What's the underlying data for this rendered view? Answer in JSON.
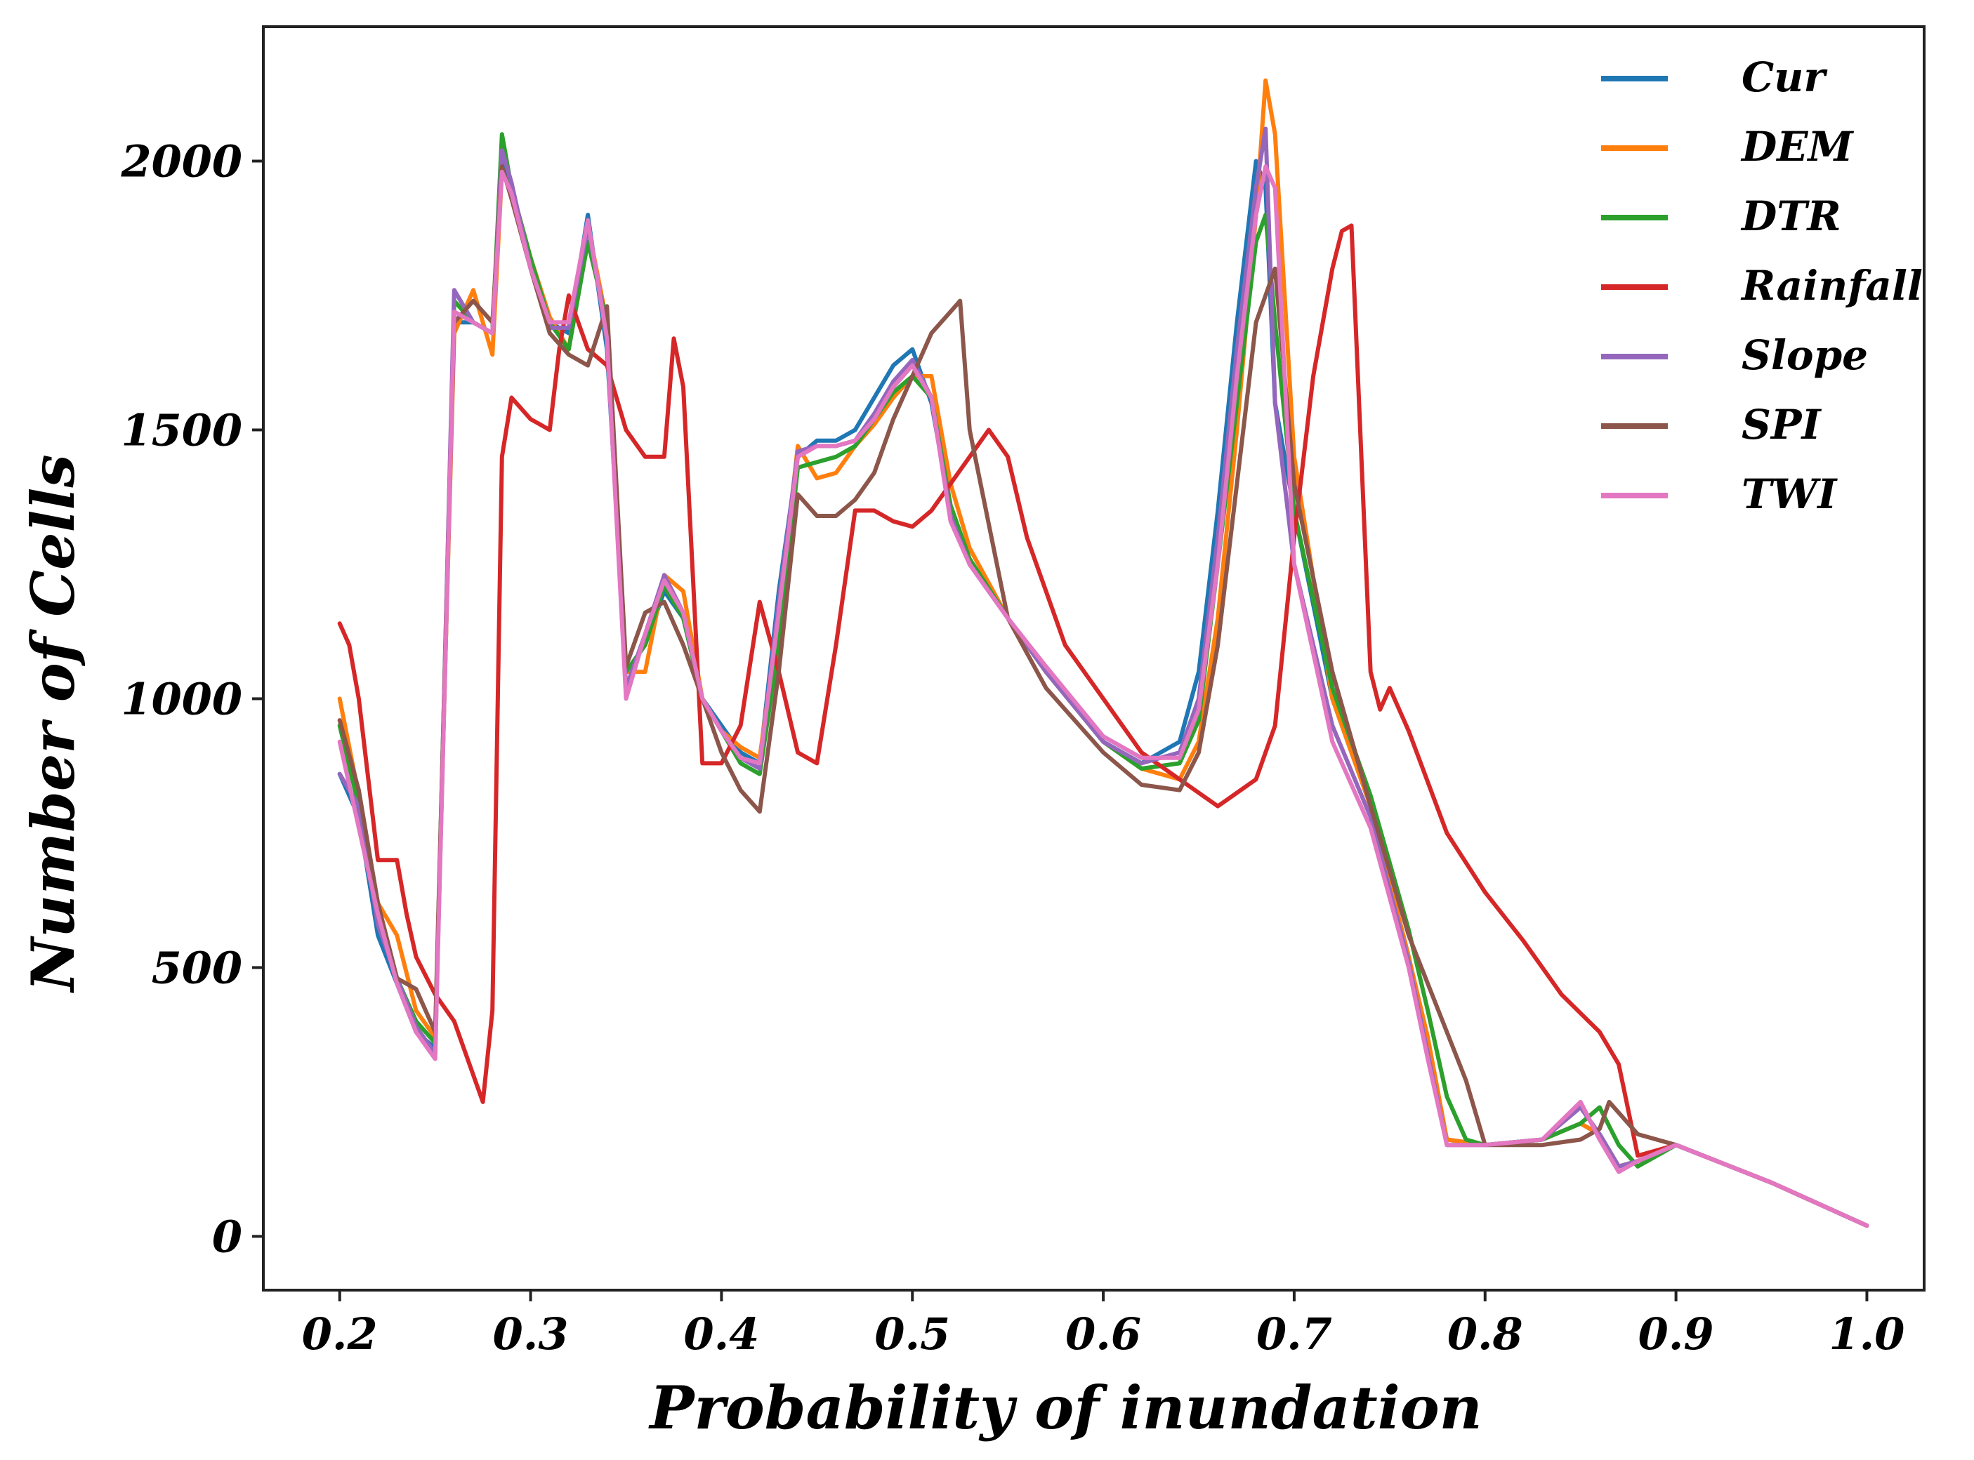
{
  "chart_data": {
    "type": "line",
    "title": "",
    "xlabel": "Probability of inundation",
    "ylabel": "Number of Cells",
    "xlim": [
      0.16,
      1.03
    ],
    "ylim": [
      -100,
      2250
    ],
    "xticks": [
      0.2,
      0.3,
      0.4,
      0.5,
      0.6,
      0.7,
      0.8,
      0.9,
      1.0
    ],
    "xtick_labels": [
      "0.2",
      "0.3",
      "0.4",
      "0.5",
      "0.6",
      "0.7",
      "0.8",
      "0.9",
      "1.0"
    ],
    "yticks": [
      0,
      500,
      1000,
      1500,
      2000
    ],
    "ytick_labels": [
      "0",
      "500",
      "1000",
      "1500",
      "2000"
    ],
    "grid": false,
    "legend_position": "top-right",
    "series": [
      {
        "name": "Cur",
        "color": "#1f77b4",
        "x": [
          0.2,
          0.21,
          0.22,
          0.23,
          0.24,
          0.25,
          0.26,
          0.27,
          0.28,
          0.285,
          0.29,
          0.3,
          0.31,
          0.32,
          0.33,
          0.34,
          0.35,
          0.36,
          0.37,
          0.38,
          0.39,
          0.4,
          0.41,
          0.42,
          0.43,
          0.44,
          0.45,
          0.46,
          0.47,
          0.48,
          0.49,
          0.5,
          0.51,
          0.52,
          0.53,
          0.55,
          0.57,
          0.6,
          0.62,
          0.64,
          0.65,
          0.66,
          0.67,
          0.68,
          0.685,
          0.69,
          0.7,
          0.72,
          0.74,
          0.76,
          0.77,
          0.78,
          0.8,
          0.83,
          0.85,
          0.86,
          0.87,
          0.88,
          0.9,
          0.95,
          1.0
        ],
        "y": [
          860,
          780,
          560,
          470,
          380,
          350,
          1700,
          1700,
          1680,
          2000,
          1950,
          1800,
          1700,
          1680,
          1900,
          1650,
          1050,
          1100,
          1200,
          1150,
          1000,
          950,
          900,
          880,
          1200,
          1450,
          1480,
          1480,
          1500,
          1560,
          1620,
          1650,
          1550,
          1350,
          1250,
          1150,
          1050,
          920,
          880,
          920,
          1050,
          1350,
          1700,
          2000,
          1950,
          1550,
          1350,
          1000,
          800,
          520,
          350,
          180,
          170,
          180,
          210,
          190,
          130,
          140,
          170,
          100,
          20
        ]
      },
      {
        "name": "DEM",
        "color": "#ff7f0e",
        "x": [
          0.2,
          0.21,
          0.22,
          0.23,
          0.24,
          0.25,
          0.26,
          0.27,
          0.28,
          0.285,
          0.29,
          0.3,
          0.31,
          0.32,
          0.33,
          0.34,
          0.35,
          0.36,
          0.37,
          0.38,
          0.39,
          0.4,
          0.41,
          0.42,
          0.43,
          0.44,
          0.45,
          0.46,
          0.47,
          0.48,
          0.49,
          0.5,
          0.51,
          0.52,
          0.53,
          0.55,
          0.57,
          0.6,
          0.62,
          0.64,
          0.65,
          0.66,
          0.67,
          0.68,
          0.685,
          0.69,
          0.7,
          0.72,
          0.74,
          0.76,
          0.77,
          0.78,
          0.8,
          0.83,
          0.85,
          0.86,
          0.87,
          0.88,
          0.9,
          0.95,
          1.0
        ],
        "y": [
          1000,
          820,
          620,
          560,
          420,
          370,
          1680,
          1760,
          1640,
          1980,
          1950,
          1820,
          1710,
          1650,
          1880,
          1700,
          1050,
          1050,
          1230,
          1200,
          1000,
          940,
          910,
          890,
          1150,
          1470,
          1410,
          1420,
          1470,
          1510,
          1560,
          1600,
          1600,
          1400,
          1280,
          1150,
          1050,
          920,
          870,
          850,
          920,
          1150,
          1500,
          1900,
          2150,
          2050,
          1450,
          1000,
          800,
          520,
          370,
          180,
          170,
          180,
          210,
          190,
          130,
          140,
          170,
          100,
          20
        ]
      },
      {
        "name": "DTR",
        "color": "#2ca02c",
        "x": [
          0.2,
          0.21,
          0.22,
          0.23,
          0.24,
          0.25,
          0.26,
          0.27,
          0.28,
          0.285,
          0.29,
          0.3,
          0.31,
          0.32,
          0.33,
          0.34,
          0.35,
          0.36,
          0.37,
          0.38,
          0.39,
          0.4,
          0.41,
          0.42,
          0.43,
          0.44,
          0.45,
          0.46,
          0.47,
          0.48,
          0.49,
          0.5,
          0.51,
          0.52,
          0.53,
          0.55,
          0.57,
          0.6,
          0.62,
          0.64,
          0.65,
          0.66,
          0.67,
          0.68,
          0.685,
          0.69,
          0.7,
          0.72,
          0.74,
          0.76,
          0.77,
          0.78,
          0.79,
          0.8,
          0.83,
          0.85,
          0.86,
          0.87,
          0.88,
          0.9,
          0.95,
          1.0
        ],
        "y": [
          950,
          800,
          600,
          480,
          400,
          360,
          1740,
          1700,
          1680,
          2050,
          1950,
          1820,
          1700,
          1650,
          1850,
          1700,
          1050,
          1100,
          1210,
          1150,
          1000,
          940,
          880,
          860,
          1100,
          1430,
          1440,
          1450,
          1470,
          1520,
          1570,
          1600,
          1560,
          1360,
          1260,
          1150,
          1050,
          920,
          870,
          880,
          960,
          1250,
          1550,
          1850,
          1900,
          1700,
          1350,
          1020,
          820,
          570,
          420,
          260,
          180,
          170,
          180,
          210,
          240,
          170,
          130,
          170,
          100,
          20
        ]
      },
      {
        "name": "Rainfall",
        "color": "#d62728",
        "x": [
          0.2,
          0.205,
          0.21,
          0.22,
          0.23,
          0.235,
          0.24,
          0.25,
          0.26,
          0.27,
          0.275,
          0.28,
          0.285,
          0.29,
          0.3,
          0.31,
          0.315,
          0.32,
          0.33,
          0.34,
          0.35,
          0.36,
          0.37,
          0.375,
          0.38,
          0.39,
          0.4,
          0.41,
          0.42,
          0.43,
          0.44,
          0.45,
          0.46,
          0.47,
          0.48,
          0.49,
          0.5,
          0.51,
          0.52,
          0.53,
          0.54,
          0.55,
          0.56,
          0.58,
          0.6,
          0.62,
          0.64,
          0.66,
          0.68,
          0.69,
          0.7,
          0.71,
          0.72,
          0.725,
          0.73,
          0.74,
          0.745,
          0.75,
          0.76,
          0.78,
          0.8,
          0.82,
          0.84,
          0.86,
          0.87,
          0.88,
          0.9,
          0.95,
          1.0
        ],
        "y": [
          1140,
          1100,
          1000,
          700,
          700,
          600,
          520,
          450,
          400,
          300,
          250,
          420,
          1450,
          1560,
          1520,
          1500,
          1650,
          1750,
          1650,
          1620,
          1500,
          1450,
          1450,
          1670,
          1580,
          880,
          880,
          950,
          1180,
          1050,
          900,
          880,
          1100,
          1350,
          1350,
          1330,
          1320,
          1350,
          1400,
          1450,
          1500,
          1450,
          1300,
          1100,
          1000,
          900,
          850,
          800,
          850,
          950,
          1300,
          1600,
          1800,
          1870,
          1880,
          1050,
          980,
          1020,
          940,
          750,
          640,
          550,
          450,
          380,
          320,
          150,
          170,
          100,
          20
        ]
      },
      {
        "name": "Slope",
        "color": "#9467bd",
        "x": [
          0.2,
          0.21,
          0.22,
          0.23,
          0.24,
          0.25,
          0.26,
          0.27,
          0.28,
          0.285,
          0.29,
          0.3,
          0.31,
          0.32,
          0.33,
          0.34,
          0.35,
          0.36,
          0.37,
          0.38,
          0.39,
          0.4,
          0.41,
          0.42,
          0.43,
          0.44,
          0.45,
          0.46,
          0.47,
          0.48,
          0.49,
          0.5,
          0.51,
          0.52,
          0.53,
          0.55,
          0.57,
          0.6,
          0.62,
          0.64,
          0.65,
          0.66,
          0.67,
          0.68,
          0.685,
          0.69,
          0.7,
          0.72,
          0.74,
          0.76,
          0.77,
          0.78,
          0.8,
          0.83,
          0.85,
          0.86,
          0.87,
          0.88,
          0.9,
          0.95,
          1.0
        ],
        "y": [
          860,
          800,
          580,
          480,
          390,
          340,
          1760,
          1700,
          1680,
          2020,
          1960,
          1800,
          1690,
          1690,
          1880,
          1680,
          1020,
          1120,
          1230,
          1160,
          1000,
          940,
          890,
          870,
          1180,
          1460,
          1470,
          1470,
          1480,
          1530,
          1590,
          1630,
          1560,
          1340,
          1250,
          1150,
          1050,
          920,
          880,
          900,
          1000,
          1300,
          1650,
          1950,
          2060,
          1550,
          1250,
          950,
          780,
          510,
          340,
          170,
          170,
          180,
          240,
          190,
          130,
          140,
          170,
          100,
          20
        ]
      },
      {
        "name": "SPI",
        "color": "#8c564b",
        "x": [
          0.2,
          0.21,
          0.22,
          0.23,
          0.24,
          0.25,
          0.26,
          0.27,
          0.28,
          0.285,
          0.29,
          0.3,
          0.31,
          0.32,
          0.33,
          0.34,
          0.35,
          0.36,
          0.37,
          0.38,
          0.39,
          0.4,
          0.41,
          0.42,
          0.43,
          0.44,
          0.45,
          0.46,
          0.47,
          0.48,
          0.49,
          0.5,
          0.51,
          0.52,
          0.525,
          0.53,
          0.55,
          0.57,
          0.6,
          0.62,
          0.64,
          0.65,
          0.66,
          0.67,
          0.68,
          0.69,
          0.7,
          0.72,
          0.74,
          0.76,
          0.78,
          0.79,
          0.8,
          0.81,
          0.83,
          0.85,
          0.86,
          0.865,
          0.87,
          0.88,
          0.9,
          0.95,
          1.0
        ],
        "y": [
          960,
          830,
          620,
          480,
          460,
          380,
          1700,
          1740,
          1700,
          1990,
          1930,
          1800,
          1680,
          1640,
          1620,
          1730,
          1060,
          1160,
          1180,
          1100,
          1000,
          900,
          830,
          790,
          1050,
          1380,
          1340,
          1340,
          1370,
          1420,
          1520,
          1600,
          1680,
          1720,
          1740,
          1500,
          1150,
          1020,
          900,
          840,
          830,
          900,
          1100,
          1400,
          1700,
          1800,
          1400,
          1050,
          800,
          560,
          380,
          290,
          170,
          170,
          170,
          180,
          200,
          250,
          230,
          190,
          170,
          100,
          20
        ]
      },
      {
        "name": "TWI",
        "color": "#e377c2",
        "x": [
          0.2,
          0.21,
          0.22,
          0.23,
          0.24,
          0.25,
          0.26,
          0.27,
          0.28,
          0.285,
          0.29,
          0.3,
          0.31,
          0.32,
          0.33,
          0.34,
          0.35,
          0.36,
          0.37,
          0.38,
          0.39,
          0.4,
          0.41,
          0.42,
          0.43,
          0.44,
          0.45,
          0.46,
          0.47,
          0.48,
          0.49,
          0.5,
          0.51,
          0.52,
          0.53,
          0.55,
          0.57,
          0.6,
          0.62,
          0.64,
          0.65,
          0.66,
          0.67,
          0.68,
          0.685,
          0.69,
          0.7,
          0.72,
          0.74,
          0.76,
          0.77,
          0.78,
          0.8,
          0.83,
          0.85,
          0.86,
          0.87,
          0.88,
          0.9,
          0.95,
          1.0
        ],
        "y": [
          920,
          760,
          600,
          470,
          380,
          330,
          1720,
          1700,
          1680,
          1980,
          1940,
          1800,
          1700,
          1700,
          1890,
          1670,
          1000,
          1120,
          1220,
          1160,
          1000,
          940,
          890,
          880,
          1160,
          1450,
          1470,
          1470,
          1480,
          1520,
          1580,
          1620,
          1560,
          1330,
          1250,
          1150,
          1060,
          930,
          890,
          890,
          980,
          1250,
          1600,
          1900,
          1990,
          1950,
          1250,
          920,
          760,
          500,
          330,
          170,
          170,
          180,
          250,
          180,
          120,
          140,
          170,
          100,
          20
        ]
      }
    ]
  }
}
